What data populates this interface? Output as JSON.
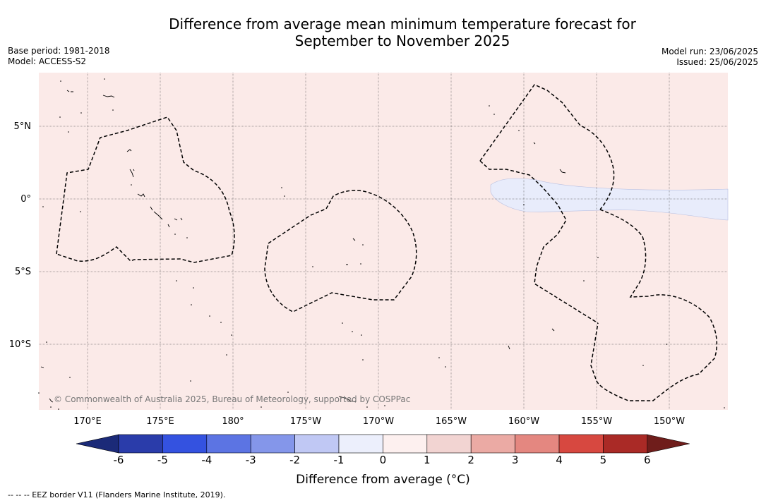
{
  "title": {
    "line1": "Difference from average mean minimum temperature forecast for",
    "line2": "September to November 2025"
  },
  "meta_left": {
    "base_period": "Base period: 1981-2018",
    "model": "Model: ACCESS-S2"
  },
  "meta_right": {
    "model_run": "Model run: 23/06/2025",
    "issued": "Issued: 25/06/2025"
  },
  "map": {
    "lat_labels": [
      "5°N",
      "0°",
      "5°S",
      "10°S"
    ],
    "lon_labels": [
      "170°E",
      "175°E",
      "180°",
      "175°W",
      "170°W",
      "165°W",
      "160°W",
      "155°W",
      "150°W"
    ],
    "copyright": "© Commonwealth of Australia 2025, Bureau of Meteorology, supported by COSPPac",
    "colors": {
      "background_anomaly": "#fbeae8",
      "cool_anomaly": "#e8ecfb",
      "eez_line": "#000000"
    }
  },
  "colorbar": {
    "labels": [
      "-6",
      "-5",
      "-4",
      "-3",
      "-2",
      "-1",
      "0",
      "1",
      "2",
      "3",
      "4",
      "5",
      "6"
    ],
    "colors": [
      "#1b2a78",
      "#2a3caa",
      "#3452e0",
      "#5c74e3",
      "#8496ea",
      "#c0c8f4",
      "#eceffc",
      "#fdf0ef",
      "#f2d4d2",
      "#ebaaa4",
      "#e48780",
      "#d74840",
      "#aa2a26",
      "#6f1d1b"
    ],
    "title": "Difference from average (°C)"
  },
  "footnote": "--  --  -- EEZ border V11 (Flanders Marine Institute, 2019)."
}
